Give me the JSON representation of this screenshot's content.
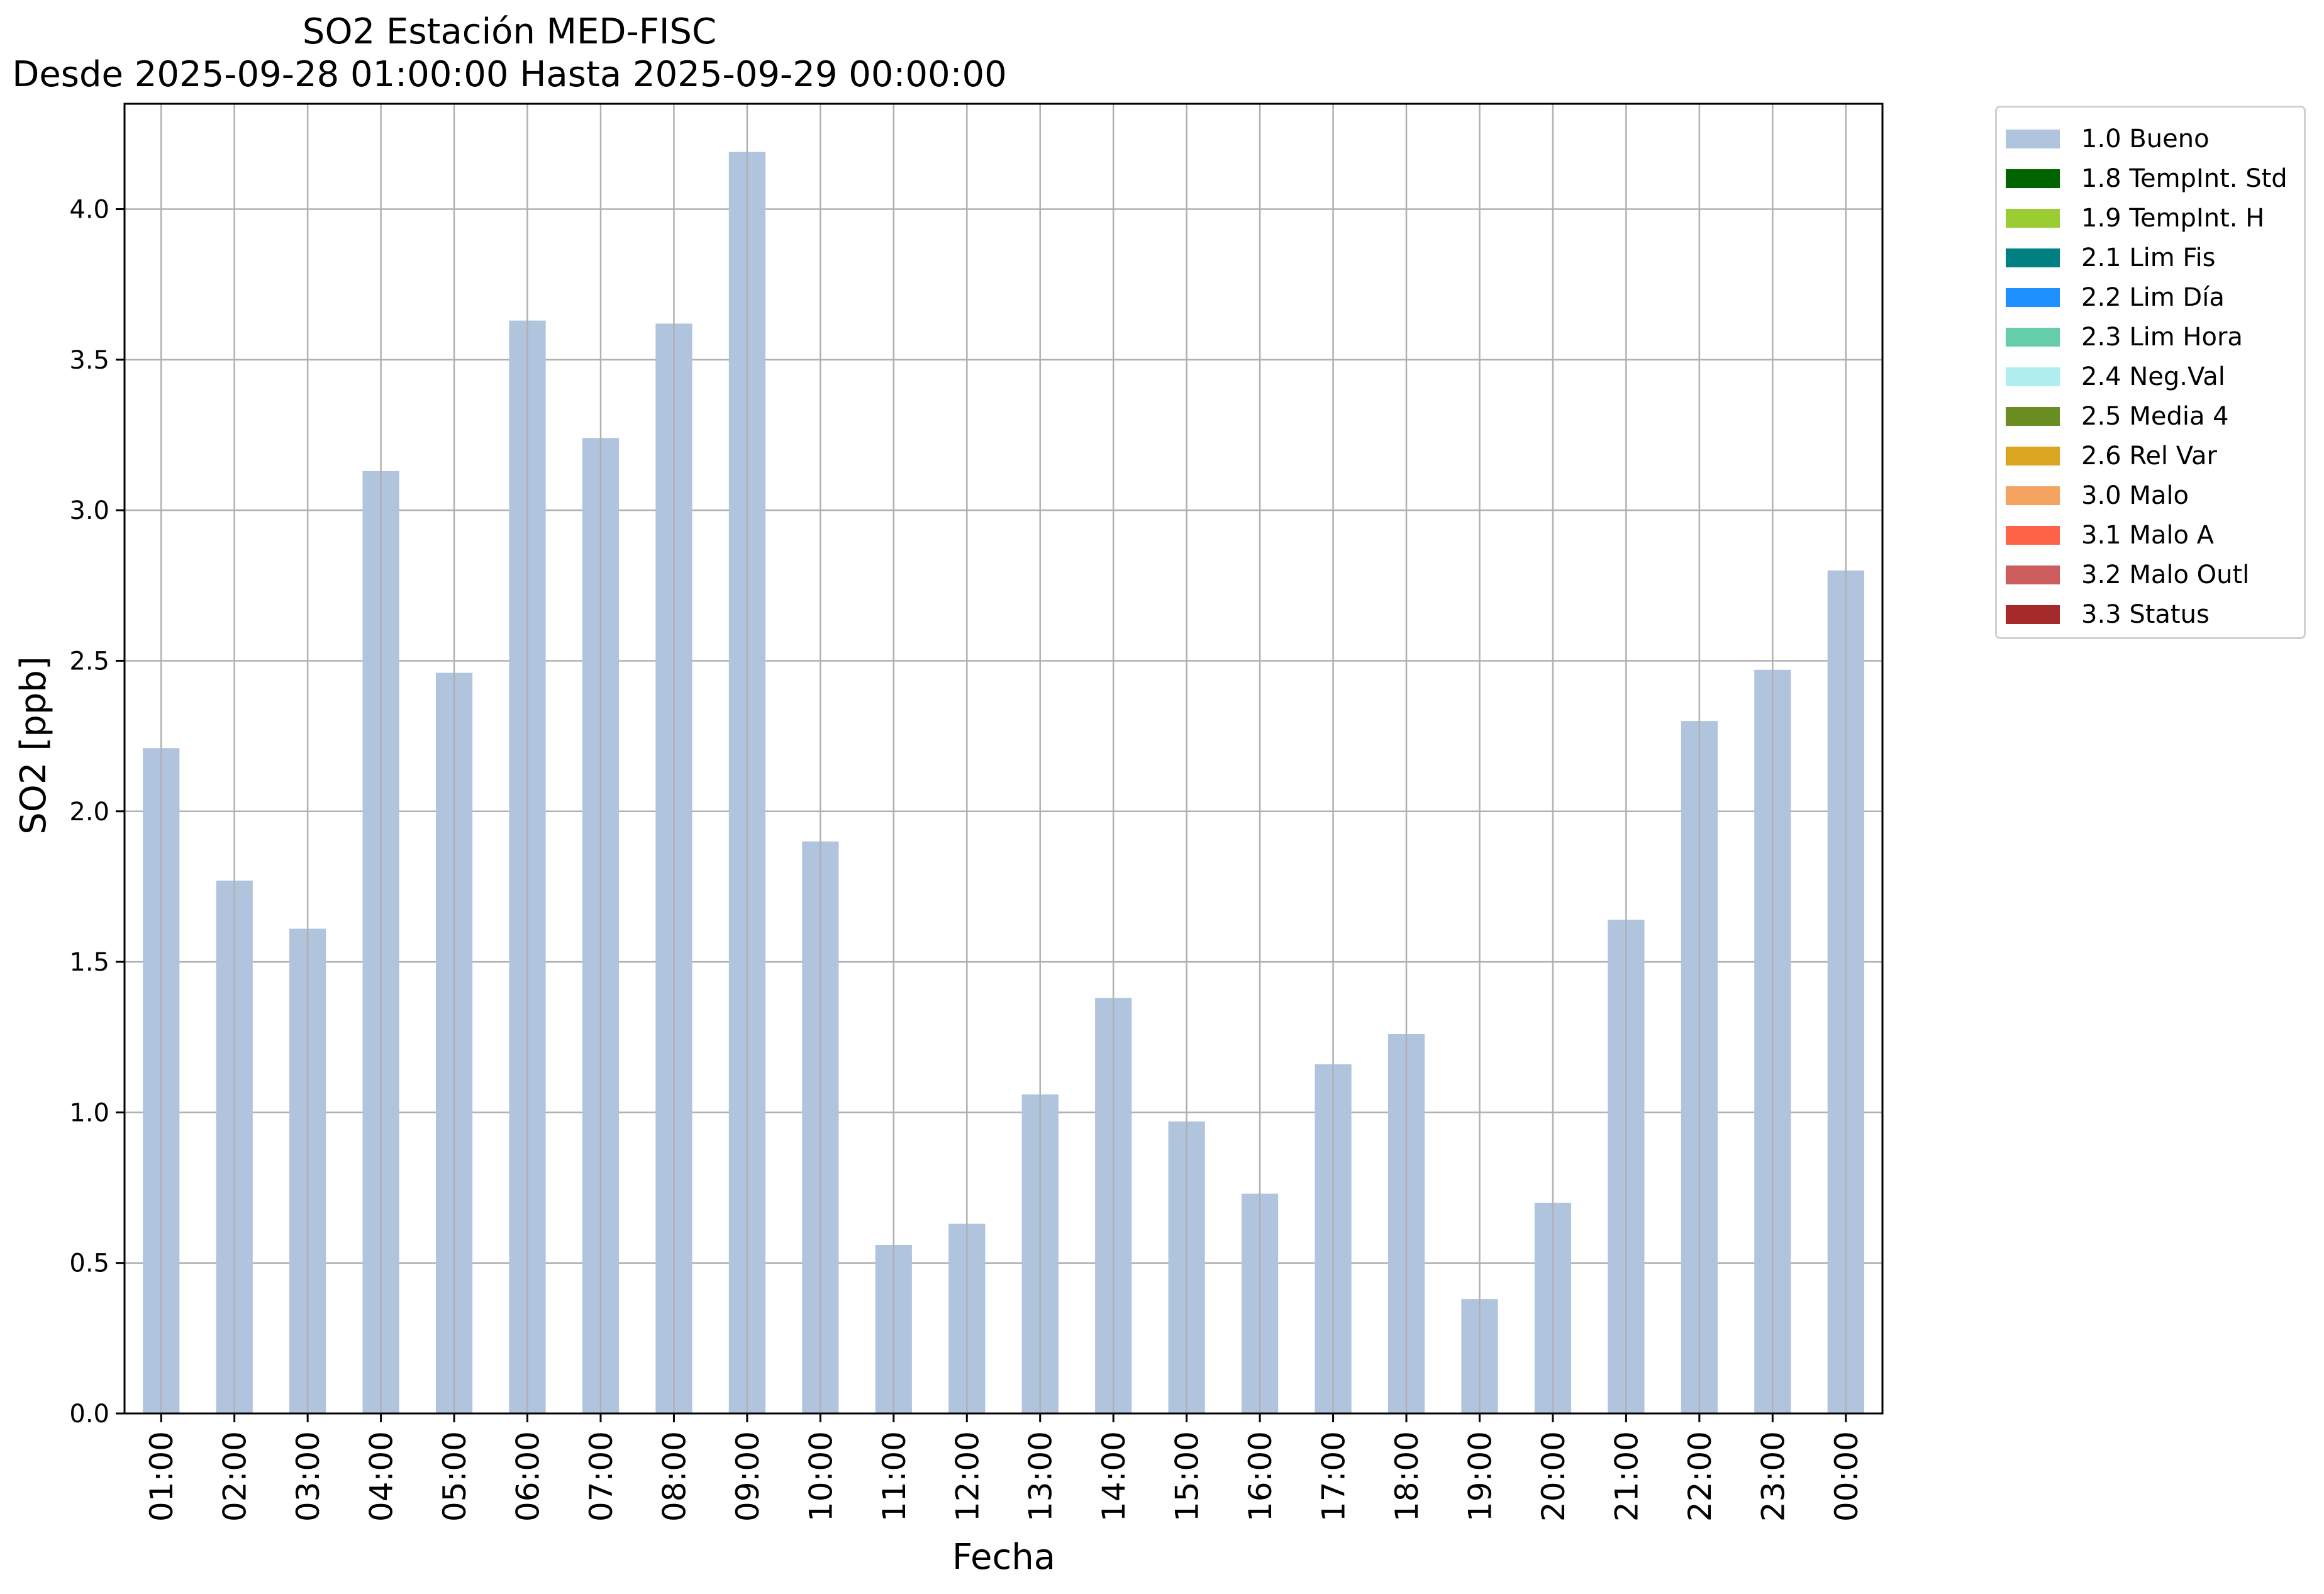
{
  "chart_data": {
    "type": "bar",
    "title": "SO2 Estación MED-FISC",
    "subtitle": "Desde 2025-09-28 01:00:00 Hasta 2025-09-29 00:00:00",
    "xlabel": "Fecha",
    "ylabel": "SO2 [ppb]",
    "ylim": [
      0,
      4.35
    ],
    "yticks": [
      "0.0",
      "0.5",
      "1.0",
      "1.5",
      "2.0",
      "2.5",
      "3.0",
      "3.5",
      "4.0"
    ],
    "grid": true,
    "legend_position": "outside right, top",
    "categories": [
      "01:00",
      "02:00",
      "03:00",
      "04:00",
      "05:00",
      "06:00",
      "07:00",
      "08:00",
      "09:00",
      "10:00",
      "11:00",
      "12:00",
      "13:00",
      "14:00",
      "15:00",
      "16:00",
      "17:00",
      "18:00",
      "19:00",
      "20:00",
      "21:00",
      "22:00",
      "23:00",
      "00:00"
    ],
    "series": [
      {
        "name": "1.0 Bueno",
        "color": "#b0c4de",
        "values": [
          2.21,
          1.77,
          1.61,
          3.13,
          2.46,
          3.63,
          3.24,
          3.62,
          4.19,
          1.9,
          0.56,
          0.63,
          1.06,
          1.38,
          0.97,
          0.73,
          1.16,
          1.26,
          0.38,
          0.7,
          1.64,
          2.3,
          2.47,
          2.8
        ]
      }
    ],
    "legend": [
      {
        "label": "1.0 Bueno",
        "color": "#b0c4de"
      },
      {
        "label": "1.8 TempInt. Std",
        "color": "#006400"
      },
      {
        "label": "1.9 TempInt. H",
        "color": "#9acd32"
      },
      {
        "label": "2.1 Lim Fis",
        "color": "#008080"
      },
      {
        "label": "2.2 Lim Día",
        "color": "#1e90ff"
      },
      {
        "label": "2.3 Lim Hora",
        "color": "#66cdaa"
      },
      {
        "label": "2.4 Neg.Val",
        "color": "#afeeee"
      },
      {
        "label": "2.5 Media 4",
        "color": "#6b8e23"
      },
      {
        "label": "2.6 Rel Var",
        "color": "#daa520"
      },
      {
        "label": "3.0 Malo",
        "color": "#f4a460"
      },
      {
        "label": "3.1 Malo A",
        "color": "#ff6347"
      },
      {
        "label": "3.2 Malo Outl",
        "color": "#cd5c5c"
      },
      {
        "label": "3.3 Status",
        "color": "#a52a2a"
      }
    ]
  }
}
